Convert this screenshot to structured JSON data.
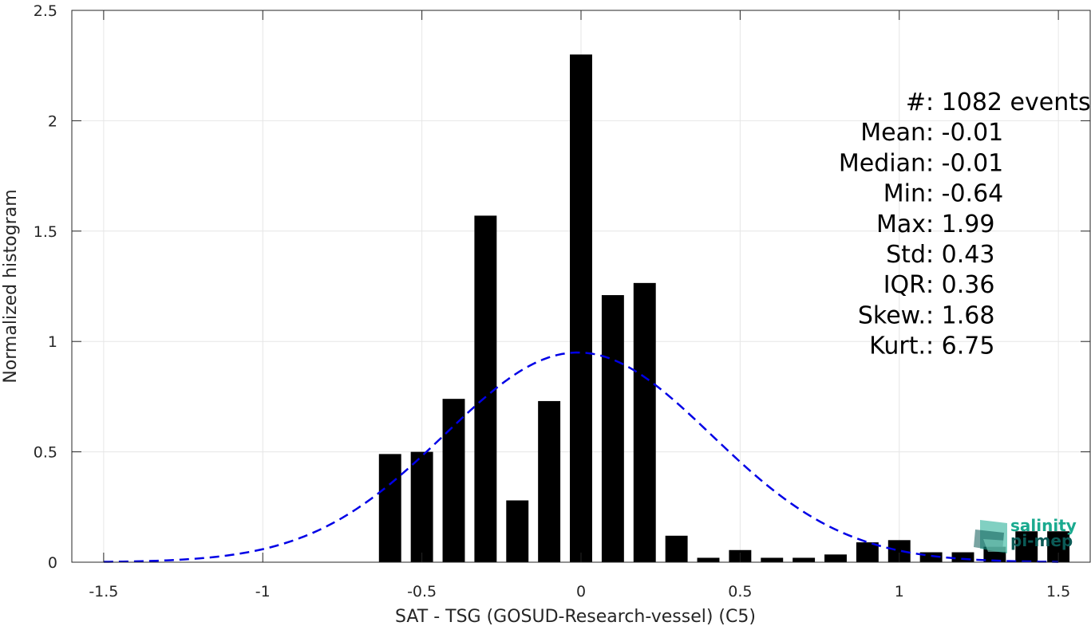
{
  "chart_data": {
    "type": "bar",
    "xlabel": "SAT - TSG (GOSUD-Research-vessel) (C5)",
    "ylabel": "Normalized histogram",
    "xlim": [
      -1.6,
      1.6
    ],
    "ylim": [
      0,
      2.5
    ],
    "xticks": [
      -1.5,
      -1,
      -0.5,
      0,
      0.5,
      1,
      1.5
    ],
    "xtick_labels": [
      "-1.5",
      "-1",
      "-0.5",
      "0",
      "0.5",
      "1",
      "1.5"
    ],
    "yticks": [
      0,
      0.5,
      1,
      1.5,
      2,
      2.5
    ],
    "ytick_labels": [
      "0",
      "0.5",
      "1",
      "1.5",
      "2",
      "2.5"
    ],
    "grid": true,
    "bar_color": "#000000",
    "bar_width": 0.07,
    "bins": [
      {
        "x": -0.6,
        "y": 0.49
      },
      {
        "x": -0.5,
        "y": 0.5
      },
      {
        "x": -0.4,
        "y": 0.74
      },
      {
        "x": -0.3,
        "y": 1.57
      },
      {
        "x": -0.2,
        "y": 0.28
      },
      {
        "x": -0.1,
        "y": 0.73
      },
      {
        "x": 0.0,
        "y": 2.3
      },
      {
        "x": 0.1,
        "y": 1.21
      },
      {
        "x": 0.2,
        "y": 1.265
      },
      {
        "x": 0.3,
        "y": 0.12
      },
      {
        "x": 0.4,
        "y": 0.02
      },
      {
        "x": 0.5,
        "y": 0.055
      },
      {
        "x": 0.6,
        "y": 0.02
      },
      {
        "x": 0.7,
        "y": 0.02
      },
      {
        "x": 0.8,
        "y": 0.035
      },
      {
        "x": 0.9,
        "y": 0.09
      },
      {
        "x": 1.0,
        "y": 0.1
      },
      {
        "x": 1.1,
        "y": 0.045
      },
      {
        "x": 1.2,
        "y": 0.045
      },
      {
        "x": 1.3,
        "y": 0.07
      },
      {
        "x": 1.4,
        "y": 0.14
      },
      {
        "x": 1.5,
        "y": 0.14
      }
    ],
    "fit_curve": {
      "style": "dashed",
      "color": "#0000e6",
      "x_range": [
        -1.5,
        1.5
      ],
      "mean": -0.01,
      "std": 0.42,
      "peak": 0.95
    },
    "stats": [
      {
        "key": "#  ",
        "value": ": 1082 events"
      },
      {
        "key": "Mean ",
        "value": ": -0.01"
      },
      {
        "key": "Median ",
        "value": ": -0.01"
      },
      {
        "key": "Min ",
        "value": ": -0.64"
      },
      {
        "key": "Max ",
        "value": ": 1.99"
      },
      {
        "key": "Std ",
        "value": ": 0.43"
      },
      {
        "key": "IQR ",
        "value": ": 0.36"
      },
      {
        "key": "Skew. ",
        "value": ": 1.68"
      },
      {
        "key": "Kurt. ",
        "value": ": 6.75"
      }
    ]
  },
  "logo": {
    "line1": "salinity",
    "line2": "pi-mep",
    "color_primary": "#1aaa8f",
    "color_secondary": "#0b5a56"
  }
}
